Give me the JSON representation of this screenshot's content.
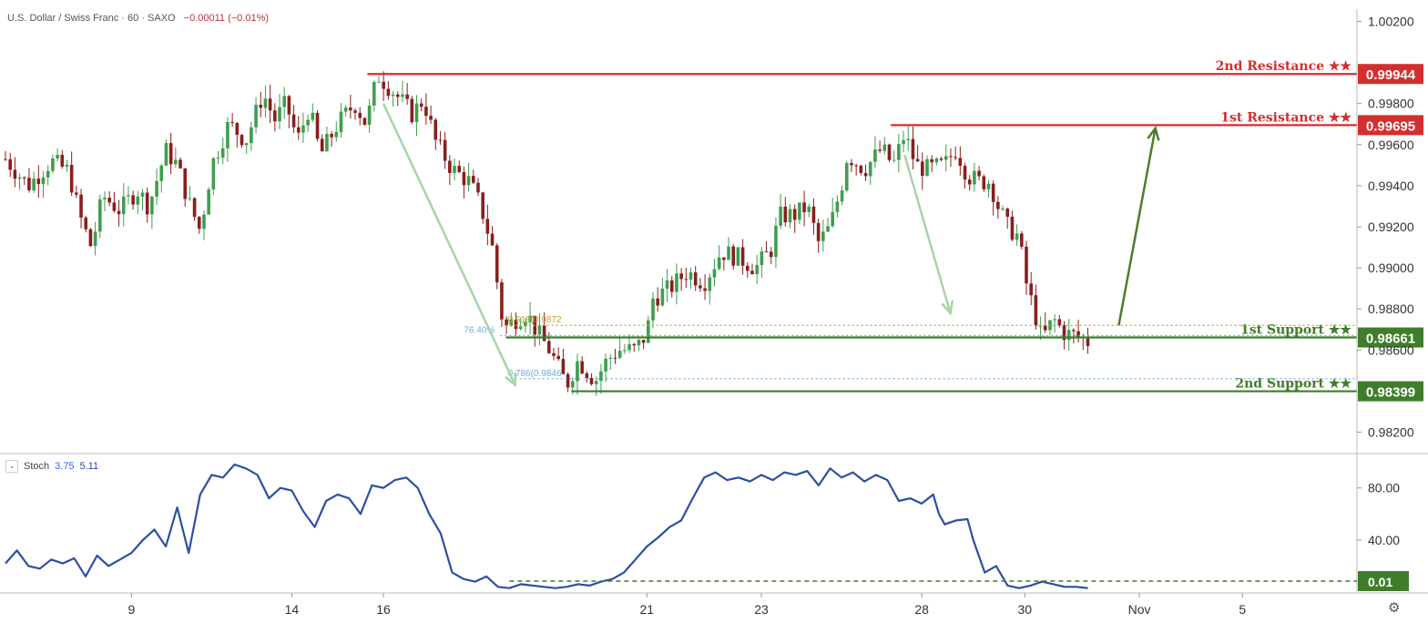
{
  "header": {
    "symbol": "U.S. Dollar / Swiss Franc · 60 · SAXO",
    "change": "−0.00011 (−0.01%)"
  },
  "stoch_header": {
    "label": "Stoch",
    "k_value": "3.75",
    "d_value": "5.11",
    "toggle_icon": "chevron-down-icon"
  },
  "settings_icon": "gear-icon",
  "colors": {
    "resistance": "#d32f2f",
    "support": "#3f7d2a",
    "bull_candle": "#3f9e4e",
    "bear_candle": "#8a1e1e",
    "arrow_light": "#a5d6a7",
    "arrow_dark": "#4a7f2f",
    "stoch_line": "#2c4fa3",
    "fib_gold": "#c9a227",
    "fib_blue": "#6fa8dc"
  },
  "chart_data": {
    "type": "candlestick",
    "price_axis": {
      "ylim": [
        0.981,
        1.0026
      ],
      "ticks": [
        "1.00200",
        "0.99800",
        "0.99600",
        "0.99400",
        "0.99200",
        "0.99000",
        "0.98800",
        "0.98600",
        "0.98200"
      ]
    },
    "x_labels": [
      {
        "label": "9",
        "x": 0.11
      },
      {
        "label": "14",
        "x": 0.25
      },
      {
        "label": "16",
        "x": 0.33
      },
      {
        "label": "21",
        "x": 0.56
      },
      {
        "label": "23",
        "x": 0.66
      },
      {
        "label": "28",
        "x": 0.8
      },
      {
        "label": "30",
        "x": 0.89
      },
      {
        "label": "Nov",
        "x": 0.99
      },
      {
        "label": "5",
        "x": 1.08
      }
    ],
    "x_range": [
      0,
      1.18
    ],
    "price_path": [
      [
        0.0,
        0.9953
      ],
      [
        0.02,
        0.994
      ],
      [
        0.04,
        0.9952
      ],
      [
        0.055,
        0.9947
      ],
      [
        0.065,
        0.9925
      ],
      [
        0.075,
        0.991
      ],
      [
        0.085,
        0.9935
      ],
      [
        0.1,
        0.9928
      ],
      [
        0.115,
        0.9938
      ],
      [
        0.125,
        0.993
      ],
      [
        0.14,
        0.9957
      ],
      [
        0.15,
        0.995
      ],
      [
        0.16,
        0.9932
      ],
      [
        0.17,
        0.9918
      ],
      [
        0.18,
        0.995
      ],
      [
        0.195,
        0.997
      ],
      [
        0.21,
        0.9962
      ],
      [
        0.225,
        0.9985
      ],
      [
        0.235,
        0.9972
      ],
      [
        0.245,
        0.998
      ],
      [
        0.255,
        0.9962
      ],
      [
        0.265,
        0.9978
      ],
      [
        0.275,
        0.9955
      ],
      [
        0.29,
        0.997
      ],
      [
        0.305,
        0.998
      ],
      [
        0.315,
        0.997
      ],
      [
        0.325,
        0.9994
      ],
      [
        0.34,
        0.9985
      ],
      [
        0.355,
        0.9975
      ],
      [
        0.365,
        0.9982
      ],
      [
        0.375,
        0.9962
      ],
      [
        0.39,
        0.9948
      ],
      [
        0.405,
        0.9942
      ],
      [
        0.415,
        0.993
      ],
      [
        0.425,
        0.991
      ],
      [
        0.435,
        0.987
      ],
      [
        0.445,
        0.9875
      ],
      [
        0.455,
        0.9878
      ],
      [
        0.465,
        0.9868
      ],
      [
        0.475,
        0.986
      ],
      [
        0.49,
        0.9843
      ],
      [
        0.5,
        0.9855
      ],
      [
        0.515,
        0.9845
      ],
      [
        0.525,
        0.9855
      ],
      [
        0.535,
        0.986
      ],
      [
        0.55,
        0.986
      ],
      [
        0.56,
        0.9868
      ],
      [
        0.565,
        0.9885
      ],
      [
        0.58,
        0.989
      ],
      [
        0.595,
        0.9898
      ],
      [
        0.61,
        0.9893
      ],
      [
        0.625,
        0.9908
      ],
      [
        0.64,
        0.9905
      ],
      [
        0.655,
        0.99
      ],
      [
        0.67,
        0.991
      ],
      [
        0.675,
        0.9925
      ],
      [
        0.69,
        0.9926
      ],
      [
        0.7,
        0.993
      ],
      [
        0.71,
        0.9912
      ],
      [
        0.72,
        0.992
      ],
      [
        0.73,
        0.994
      ],
      [
        0.735,
        0.9955
      ],
      [
        0.75,
        0.9948
      ],
      [
        0.765,
        0.9958
      ],
      [
        0.775,
        0.995
      ],
      [
        0.785,
        0.9965
      ],
      [
        0.795,
        0.995
      ],
      [
        0.805,
        0.9948
      ],
      [
        0.82,
        0.995
      ],
      [
        0.83,
        0.9958
      ],
      [
        0.84,
        0.9945
      ],
      [
        0.85,
        0.9942
      ],
      [
        0.86,
        0.9942
      ],
      [
        0.865,
        0.9932
      ],
      [
        0.875,
        0.992
      ],
      [
        0.885,
        0.9915
      ],
      [
        0.89,
        0.9895
      ],
      [
        0.9,
        0.9875
      ],
      [
        0.905,
        0.9865
      ],
      [
        0.915,
        0.9875
      ],
      [
        0.925,
        0.9868
      ],
      [
        0.935,
        0.9867
      ],
      [
        0.945,
        0.9864
      ]
    ],
    "levels": [
      {
        "name": "2nd Resistance ★★",
        "value": "0.99944",
        "price": 0.99944,
        "x_start": 0.316,
        "kind": "resistance"
      },
      {
        "name": "1st Resistance ★★",
        "value": "0.99695",
        "price": 0.99695,
        "x_start": 0.773,
        "kind": "resistance"
      },
      {
        "name": "1st Support ★★",
        "value": "0.98661",
        "price": 0.98661,
        "x_start": 0.437,
        "kind": "support"
      },
      {
        "name": "2nd Support ★★",
        "value": "0.98399",
        "price": 0.98399,
        "x_start": 0.494,
        "kind": "support"
      }
    ],
    "fib_annotations": [
      {
        "label": "0.618(0.9872",
        "price": 0.9872,
        "x_start": 0.437,
        "color_key": "fib_gold"
      },
      {
        "label": "76.40%",
        "price": 0.9867,
        "x_start": 0.432,
        "color_key": "fib_blue"
      },
      {
        "label": "0.786(0.9846",
        "price": 0.9846,
        "x_start": 0.437,
        "color_key": "fib_blue"
      }
    ],
    "arrows": [
      {
        "from": [
          0.33,
          0.998
        ],
        "to": [
          0.445,
          0.9843
        ],
        "color_key": "arrow_light"
      },
      {
        "from": [
          0.785,
          0.9955
        ],
        "to": [
          0.825,
          0.9878
        ],
        "color_key": "arrow_light"
      },
      {
        "from": [
          0.972,
          0.9872
        ],
        "to": [
          1.004,
          0.9968
        ],
        "color_key": "arrow_dark"
      }
    ],
    "stochastic": {
      "name": "Stoch",
      "ylim": [
        0,
        105
      ],
      "ticks": [
        "80.00",
        "40.00"
      ],
      "current": "0.01",
      "oversold_line": 0.01,
      "path": [
        [
          0.0,
          22
        ],
        [
          0.01,
          32
        ],
        [
          0.02,
          20
        ],
        [
          0.03,
          18
        ],
        [
          0.04,
          25
        ],
        [
          0.05,
          22
        ],
        [
          0.06,
          26
        ],
        [
          0.07,
          12
        ],
        [
          0.08,
          28
        ],
        [
          0.09,
          20
        ],
        [
          0.1,
          25
        ],
        [
          0.11,
          30
        ],
        [
          0.12,
          40
        ],
        [
          0.13,
          48
        ],
        [
          0.14,
          35
        ],
        [
          0.15,
          65
        ],
        [
          0.16,
          30
        ],
        [
          0.17,
          75
        ],
        [
          0.18,
          90
        ],
        [
          0.19,
          88
        ],
        [
          0.2,
          98
        ],
        [
          0.21,
          95
        ],
        [
          0.22,
          90
        ],
        [
          0.23,
          72
        ],
        [
          0.24,
          80
        ],
        [
          0.25,
          78
        ],
        [
          0.26,
          62
        ],
        [
          0.27,
          50
        ],
        [
          0.28,
          70
        ],
        [
          0.29,
          75
        ],
        [
          0.3,
          72
        ],
        [
          0.31,
          60
        ],
        [
          0.32,
          82
        ],
        [
          0.33,
          80
        ],
        [
          0.34,
          86
        ],
        [
          0.35,
          88
        ],
        [
          0.36,
          80
        ],
        [
          0.37,
          60
        ],
        [
          0.38,
          45
        ],
        [
          0.39,
          15
        ],
        [
          0.4,
          10
        ],
        [
          0.41,
          8
        ],
        [
          0.42,
          12
        ],
        [
          0.43,
          4
        ],
        [
          0.44,
          3
        ],
        [
          0.45,
          6
        ],
        [
          0.46,
          5
        ],
        [
          0.47,
          4
        ],
        [
          0.48,
          3
        ],
        [
          0.49,
          4
        ],
        [
          0.5,
          6
        ],
        [
          0.51,
          5
        ],
        [
          0.52,
          8
        ],
        [
          0.53,
          10
        ],
        [
          0.54,
          15
        ],
        [
          0.55,
          25
        ],
        [
          0.56,
          35
        ],
        [
          0.57,
          42
        ],
        [
          0.58,
          50
        ],
        [
          0.59,
          55
        ],
        [
          0.6,
          72
        ],
        [
          0.61,
          88
        ],
        [
          0.62,
          92
        ],
        [
          0.63,
          86
        ],
        [
          0.64,
          88
        ],
        [
          0.65,
          85
        ],
        [
          0.66,
          90
        ],
        [
          0.67,
          86
        ],
        [
          0.68,
          92
        ],
        [
          0.69,
          90
        ],
        [
          0.7,
          93
        ],
        [
          0.71,
          82
        ],
        [
          0.72,
          95
        ],
        [
          0.73,
          88
        ],
        [
          0.74,
          92
        ],
        [
          0.75,
          85
        ],
        [
          0.76,
          90
        ],
        [
          0.77,
          86
        ],
        [
          0.78,
          70
        ],
        [
          0.79,
          72
        ],
        [
          0.8,
          68
        ],
        [
          0.81,
          75
        ],
        [
          0.815,
          60
        ],
        [
          0.82,
          52
        ],
        [
          0.83,
          55
        ],
        [
          0.84,
          56
        ],
        [
          0.845,
          40
        ],
        [
          0.855,
          15
        ],
        [
          0.865,
          20
        ],
        [
          0.875,
          5
        ],
        [
          0.885,
          3
        ],
        [
          0.895,
          5
        ],
        [
          0.905,
          8
        ],
        [
          0.915,
          6
        ],
        [
          0.925,
          4
        ],
        [
          0.935,
          4
        ],
        [
          0.945,
          3
        ]
      ]
    }
  }
}
